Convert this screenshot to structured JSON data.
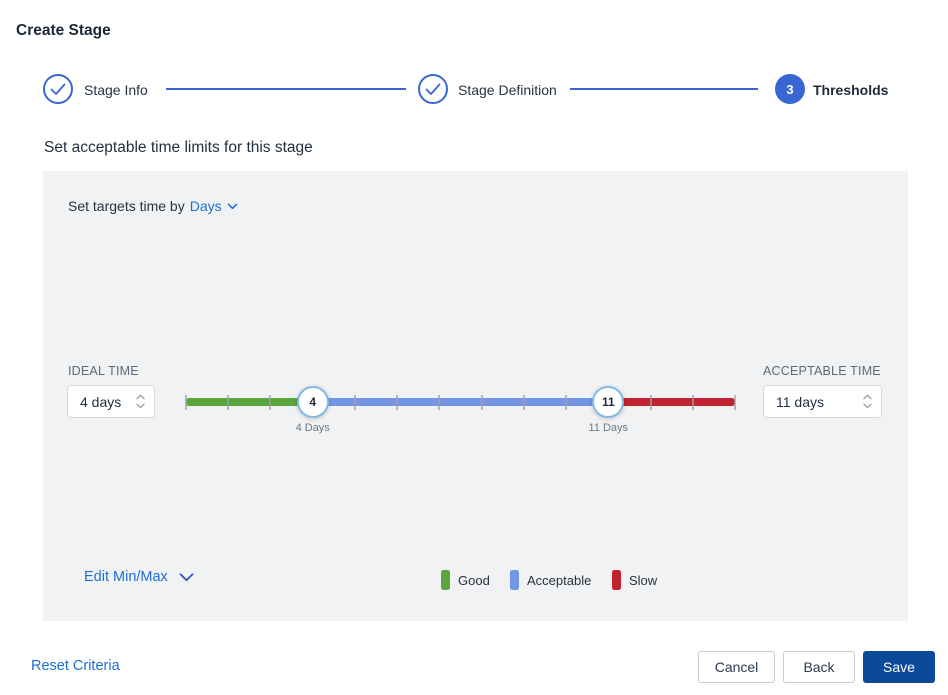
{
  "page": {
    "title": "Create Stage"
  },
  "stepper": {
    "steps": [
      {
        "label": "Stage Info",
        "state": "complete"
      },
      {
        "label": "Stage Definition",
        "state": "complete"
      },
      {
        "label": "Thresholds",
        "state": "current",
        "number": "3"
      }
    ]
  },
  "section": {
    "heading": "Set acceptable time limits for this stage"
  },
  "panel": {
    "targets_prefix": "Set targets time by",
    "unit": "Days",
    "ideal": {
      "label": "IDEAL TIME",
      "value": "4 days"
    },
    "acceptable": {
      "label": "ACCEPTABLE TIME",
      "value": "11 days"
    },
    "slider": {
      "min_day": 1,
      "max_day": 14,
      "ideal_day": 4,
      "acceptable_day": 11,
      "ideal_handle": "4",
      "acceptable_handle": "11",
      "ideal_label": "4 Days",
      "acceptable_label": "11 Days"
    },
    "edit_minmax_label": "Edit Min/Max",
    "legend": [
      {
        "label": "Good",
        "color": "#5aa63c"
      },
      {
        "label": "Acceptable",
        "color": "#7296e4"
      },
      {
        "label": "Slow",
        "color": "#c3232e"
      }
    ]
  },
  "footer": {
    "reset_label": "Reset Criteria",
    "cancel_label": "Cancel",
    "back_label": "Back",
    "save_label": "Save"
  },
  "colors": {
    "accent": "#3a66d4",
    "link": "#1d6fd8",
    "save_bg": "#0b4a9b",
    "good": "#5aa63c",
    "acceptable": "#7296e4",
    "slow": "#c3232e",
    "panel_bg": "#f1f2f3"
  }
}
